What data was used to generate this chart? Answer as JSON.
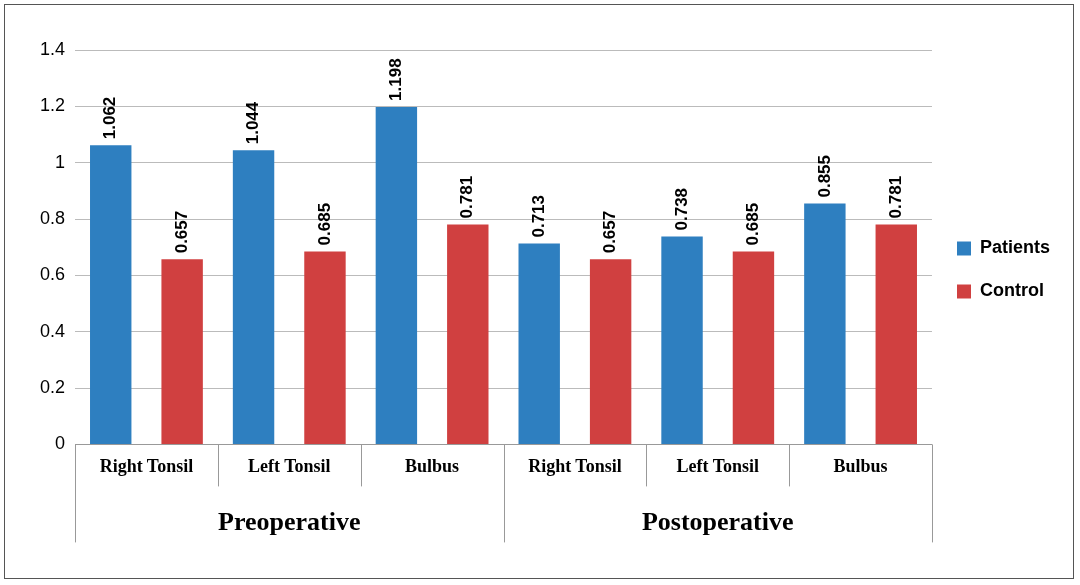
{
  "chart_data": {
    "type": "bar",
    "categories": [
      "Right Tonsil",
      "Left Tonsil",
      "Bulbus",
      "Right Tonsil",
      "Left Tonsil",
      "Bulbus"
    ],
    "series": [
      {
        "name": "Patients",
        "color": "#2e7fc0",
        "values": [
          1.062,
          1.044,
          1.198,
          0.713,
          0.738,
          0.855
        ]
      },
      {
        "name": "Control",
        "color": "#d04040",
        "values": [
          0.657,
          0.685,
          0.781,
          0.657,
          0.685,
          0.781
        ]
      }
    ],
    "annotations": [
      "Preoperative",
      "Postoperative"
    ],
    "ylim": [
      0,
      1.4
    ],
    "yticks": [
      0,
      0.2,
      0.4,
      0.6,
      0.8,
      1,
      1.2,
      1.4
    ],
    "grid": "y",
    "legend": "right",
    "data_labels": true
  }
}
